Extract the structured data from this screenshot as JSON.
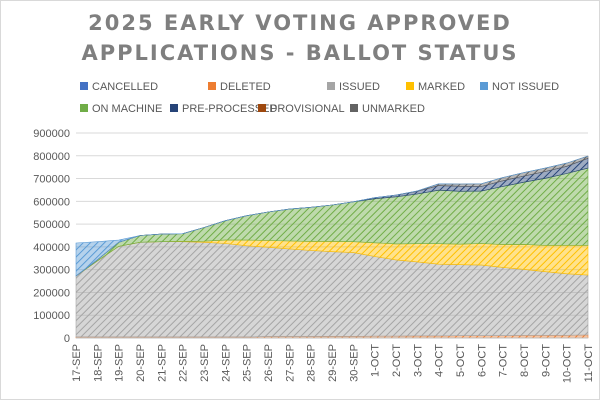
{
  "chart_data": {
    "type": "area",
    "stacked": true,
    "title": "2025 EARLY VOTING APPROVED APPLICATIONS - BALLOT STATUS",
    "title_lines": [
      "2025 EARLY VOTING APPROVED",
      "APPLICATIONS - BALLOT STATUS"
    ],
    "categories": [
      "17-SEP",
      "18-SEP",
      "19-SEP",
      "20-SEP",
      "21-SEP",
      "22-SEP",
      "23-SEP",
      "24-SEP",
      "25-SEP",
      "26-SEP",
      "27-SEP",
      "28-SEP",
      "29-SEP",
      "30-SEP",
      "1-OCT",
      "2-OCT",
      "3-OCT",
      "4-OCT",
      "5-OCT",
      "6-OCT",
      "7-OCT",
      "8-OCT",
      "9-OCT",
      "10-OCT",
      "11-OCT"
    ],
    "ylim": [
      0,
      900000
    ],
    "yticks": [
      "0",
      "100000",
      "200000",
      "300000",
      "400000",
      "500000",
      "600000",
      "700000",
      "800000",
      "900000"
    ],
    "grid": true,
    "legend_position": "top",
    "series": [
      {
        "name": "DELETED",
        "color": "#ed7d31",
        "values": [
          5000,
          5000,
          5000,
          5000,
          5000,
          5000,
          5000,
          5000,
          5000,
          6000,
          6000,
          6000,
          7000,
          7000,
          8000,
          8000,
          9000,
          9000,
          10000,
          10000,
          10000,
          11000,
          11000,
          12000,
          13000
        ]
      },
      {
        "name": "ISSUED",
        "color": "#a5a5a5",
        "values": [
          267000,
          333000,
          397000,
          415000,
          418000,
          418000,
          415000,
          410000,
          400000,
          392000,
          385000,
          378000,
          372000,
          368000,
          350000,
          335000,
          325000,
          315000,
          312000,
          310000,
          300000,
          290000,
          280000,
          270000,
          263000
        ]
      },
      {
        "name": "MARKED",
        "color": "#ffc000",
        "values": [
          0,
          0,
          0,
          0,
          0,
          1000,
          5000,
          15000,
          25000,
          30000,
          35000,
          40000,
          45000,
          48000,
          60000,
          70000,
          80000,
          90000,
          90000,
          95000,
          100000,
          110000,
          115000,
          125000,
          130000
        ]
      },
      {
        "name": "ON MACHINE",
        "color": "#70ad47",
        "values": [
          0,
          5000,
          18000,
          30000,
          33000,
          34000,
          60000,
          85000,
          107000,
          125000,
          140000,
          150000,
          160000,
          175000,
          193000,
          207000,
          218000,
          235000,
          232000,
          230000,
          255000,
          273000,
          295000,
          315000,
          340000
        ]
      },
      {
        "name": "PRE-PROCESSED",
        "color": "#264478",
        "values": [
          0,
          0,
          0,
          0,
          0,
          0,
          0,
          0,
          0,
          0,
          0,
          0,
          0,
          0,
          5000,
          8000,
          12000,
          20000,
          22000,
          20000,
          25000,
          27000,
          30000,
          32000,
          43000
        ]
      },
      {
        "name": "PROVISIONAL",
        "color": "#9e480e",
        "values": [
          0,
          0,
          0,
          0,
          0,
          0,
          0,
          0,
          0,
          0,
          0,
          0,
          0,
          0,
          0,
          0,
          0,
          0,
          0,
          0,
          0,
          0,
          0,
          0,
          0
        ]
      },
      {
        "name": "UNMARKED",
        "color": "#636363",
        "values": [
          0,
          0,
          0,
          0,
          0,
          0,
          0,
          0,
          0,
          0,
          0,
          0,
          0,
          0,
          0,
          0,
          2000,
          8000,
          10000,
          12000,
          14000,
          15000,
          15000,
          14000,
          10000
        ]
      },
      {
        "name": "NOT ISSUED",
        "color": "#5b9bd5",
        "values": [
          145000,
          80000,
          10000,
          0,
          0,
          0,
          0,
          0,
          0,
          0,
          0,
          0,
          0,
          0,
          0,
          0,
          0,
          0,
          0,
          0,
          0,
          0,
          0,
          0,
          0
        ]
      },
      {
        "name": "CANCELLED",
        "color": "#4472c4",
        "values": [
          0,
          0,
          0,
          0,
          0,
          0,
          0,
          0,
          0,
          0,
          0,
          0,
          0,
          0,
          0,
          0,
          0,
          0,
          0,
          0,
          0,
          0,
          0,
          0,
          0
        ]
      }
    ],
    "legend": [
      {
        "label": "CANCELLED",
        "color": "#4472c4"
      },
      {
        "label": "DELETED",
        "color": "#ed7d31"
      },
      {
        "label": "ISSUED",
        "color": "#a5a5a5"
      },
      {
        "label": "MARKED",
        "color": "#ffc000"
      },
      {
        "label": "NOT ISSUED",
        "color": "#5b9bd5"
      },
      {
        "label": "ON MACHINE",
        "color": "#70ad47"
      },
      {
        "label": "PRE-PROCESSED",
        "color": "#264478"
      },
      {
        "label": "PROVISIONAL",
        "color": "#9e480e"
      },
      {
        "label": "UNMARKED",
        "color": "#636363"
      }
    ]
  }
}
